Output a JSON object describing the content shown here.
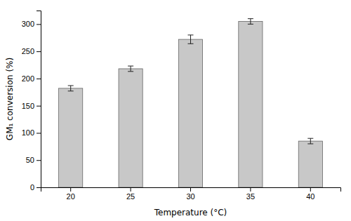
{
  "chart_data": {
    "type": "bar",
    "xlabel": "Temperature (°C)",
    "ylabel": "GM₁ conversion (%)",
    "categories": [
      "20",
      "25",
      "30",
      "35",
      "40"
    ],
    "values": [
      182,
      218,
      272,
      305,
      85
    ],
    "errors": [
      5,
      5,
      8,
      5,
      5
    ],
    "color": "#c8c8c8",
    "ylim": [
      0,
      325
    ],
    "yticks": [
      0,
      50,
      100,
      150,
      200,
      250,
      300
    ],
    "grid": false
  }
}
